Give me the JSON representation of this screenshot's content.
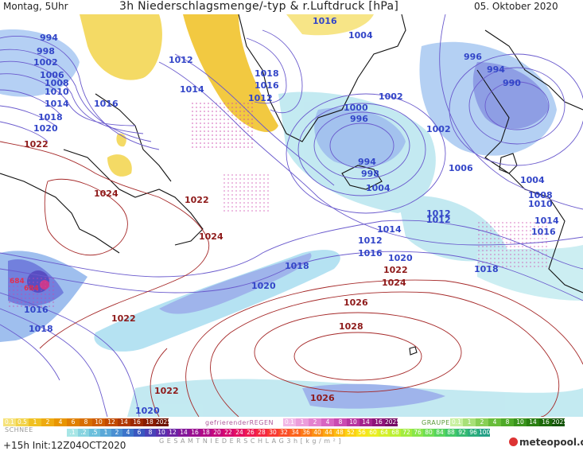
{
  "header": {
    "left": "Montag, 5Uhr",
    "title": "3h Niederschlagsmenge/-typ & r.Luftdruck [hPa]",
    "right": "05. Oktober 2020"
  },
  "footer": {
    "init": "+15h Init:12Z04OCT2020",
    "logo": "meteopool.org",
    "snow_label": "SCHNEE",
    "freezing_rain_label": "gefrierenderREGEN",
    "graupel_label": "GRAUPEL",
    "total_label": "G E S A M T N I E D E R S C H L A G   3 h   [ k g / m ² ]"
  },
  "legend": {
    "snow": [
      "0.1",
      "0.5",
      "1",
      "2",
      "4",
      "6",
      "8",
      "10",
      "12",
      "14",
      "16",
      "18",
      "2025+"
    ],
    "freezing_rain": [
      "0.1",
      "1",
      "2",
      "4",
      "8",
      "10",
      "14",
      "16",
      "2025+"
    ],
    "graupel": [
      "0.1",
      "1",
      "2",
      "4",
      "8",
      "10",
      "14",
      "16",
      "2025+"
    ],
    "rain": [
      ".1",
      ".2",
      ".5",
      "1",
      "2",
      "4",
      "6",
      "8",
      "10",
      "12",
      "14",
      "16",
      "18",
      "20",
      "22",
      "24",
      "26",
      "28",
      "30",
      "32",
      "34",
      "36",
      "40",
      "44",
      "48",
      "52",
      "56",
      "60",
      "64",
      "68",
      "72",
      "76",
      "80",
      "84",
      "88",
      "92",
      "96",
      "100"
    ],
    "colors": {
      "snow": [
        "#f6e27a",
        "#f2d34a",
        "#f0c020",
        "#eeaa10",
        "#e89500",
        "#e08000",
        "#d86e00",
        "#cf5c00",
        "#c24a00",
        "#b03800",
        "#9c2800",
        "#881c00",
        "#6e1200"
      ],
      "freezing_rain": [
        "#f2b7e6",
        "#ec9ddb",
        "#e482cf",
        "#d865c1",
        "#ca4ab1",
        "#b834a0",
        "#a4238d",
        "#8e157a",
        "#760b66"
      ],
      "graupel": [
        "#c8f0a0",
        "#a8e078",
        "#88cf55",
        "#68bd3a",
        "#4ea928",
        "#3a941c",
        "#2a7f12",
        "#1d6a0b",
        "#125406"
      ],
      "rain": [
        "#a8e6e6",
        "#88d4e0",
        "#6cc0dc",
        "#5aa8d8",
        "#4a8fd2",
        "#3c74ca",
        "#3a58c0",
        "#4a42b8",
        "#5a30ae",
        "#6e24a4",
        "#84189a",
        "#9a1090",
        "#b00a86",
        "#c4087c",
        "#d60a70",
        "#e41062",
        "#ee1a52",
        "#f42842",
        "#f83a34",
        "#fa4e28",
        "#fc641e",
        "#fc7a18",
        "#fc9014",
        "#fca612",
        "#fcbc12",
        "#fcd214",
        "#f8e41a",
        "#eaee22",
        "#d4f02c",
        "#bcf036",
        "#a2ec40",
        "#88e64a",
        "#6ede54",
        "#56d45e",
        "#42c868",
        "#34ba72",
        "#2aac7c",
        "#24a086"
      ]
    }
  },
  "isobars": {
    "blue": [
      "994",
      "998",
      "1002",
      "1006",
      "1008",
      "1010",
      "1014",
      "1016",
      "1018",
      "1020",
      "1012",
      "1016",
      "1014",
      "1012",
      "1018",
      "1016",
      "1012",
      "1016",
      "1004",
      "1000",
      "996",
      "1002",
      "1002",
      "994",
      "998",
      "1004",
      "1006",
      "996",
      "994",
      "990",
      "1004",
      "1008",
      "1010",
      "1014",
      "1016",
      "1012",
      "1014",
      "1016",
      "1018",
      "1020",
      "1018",
      "1016",
      "1018",
      "1020"
    ],
    "red": [
      "1022",
      "1024",
      "1022",
      "1024",
      "1022",
      "1024",
      "1026",
      "1028",
      "1022",
      "1022",
      "1026",
      "684",
      "684"
    ]
  }
}
